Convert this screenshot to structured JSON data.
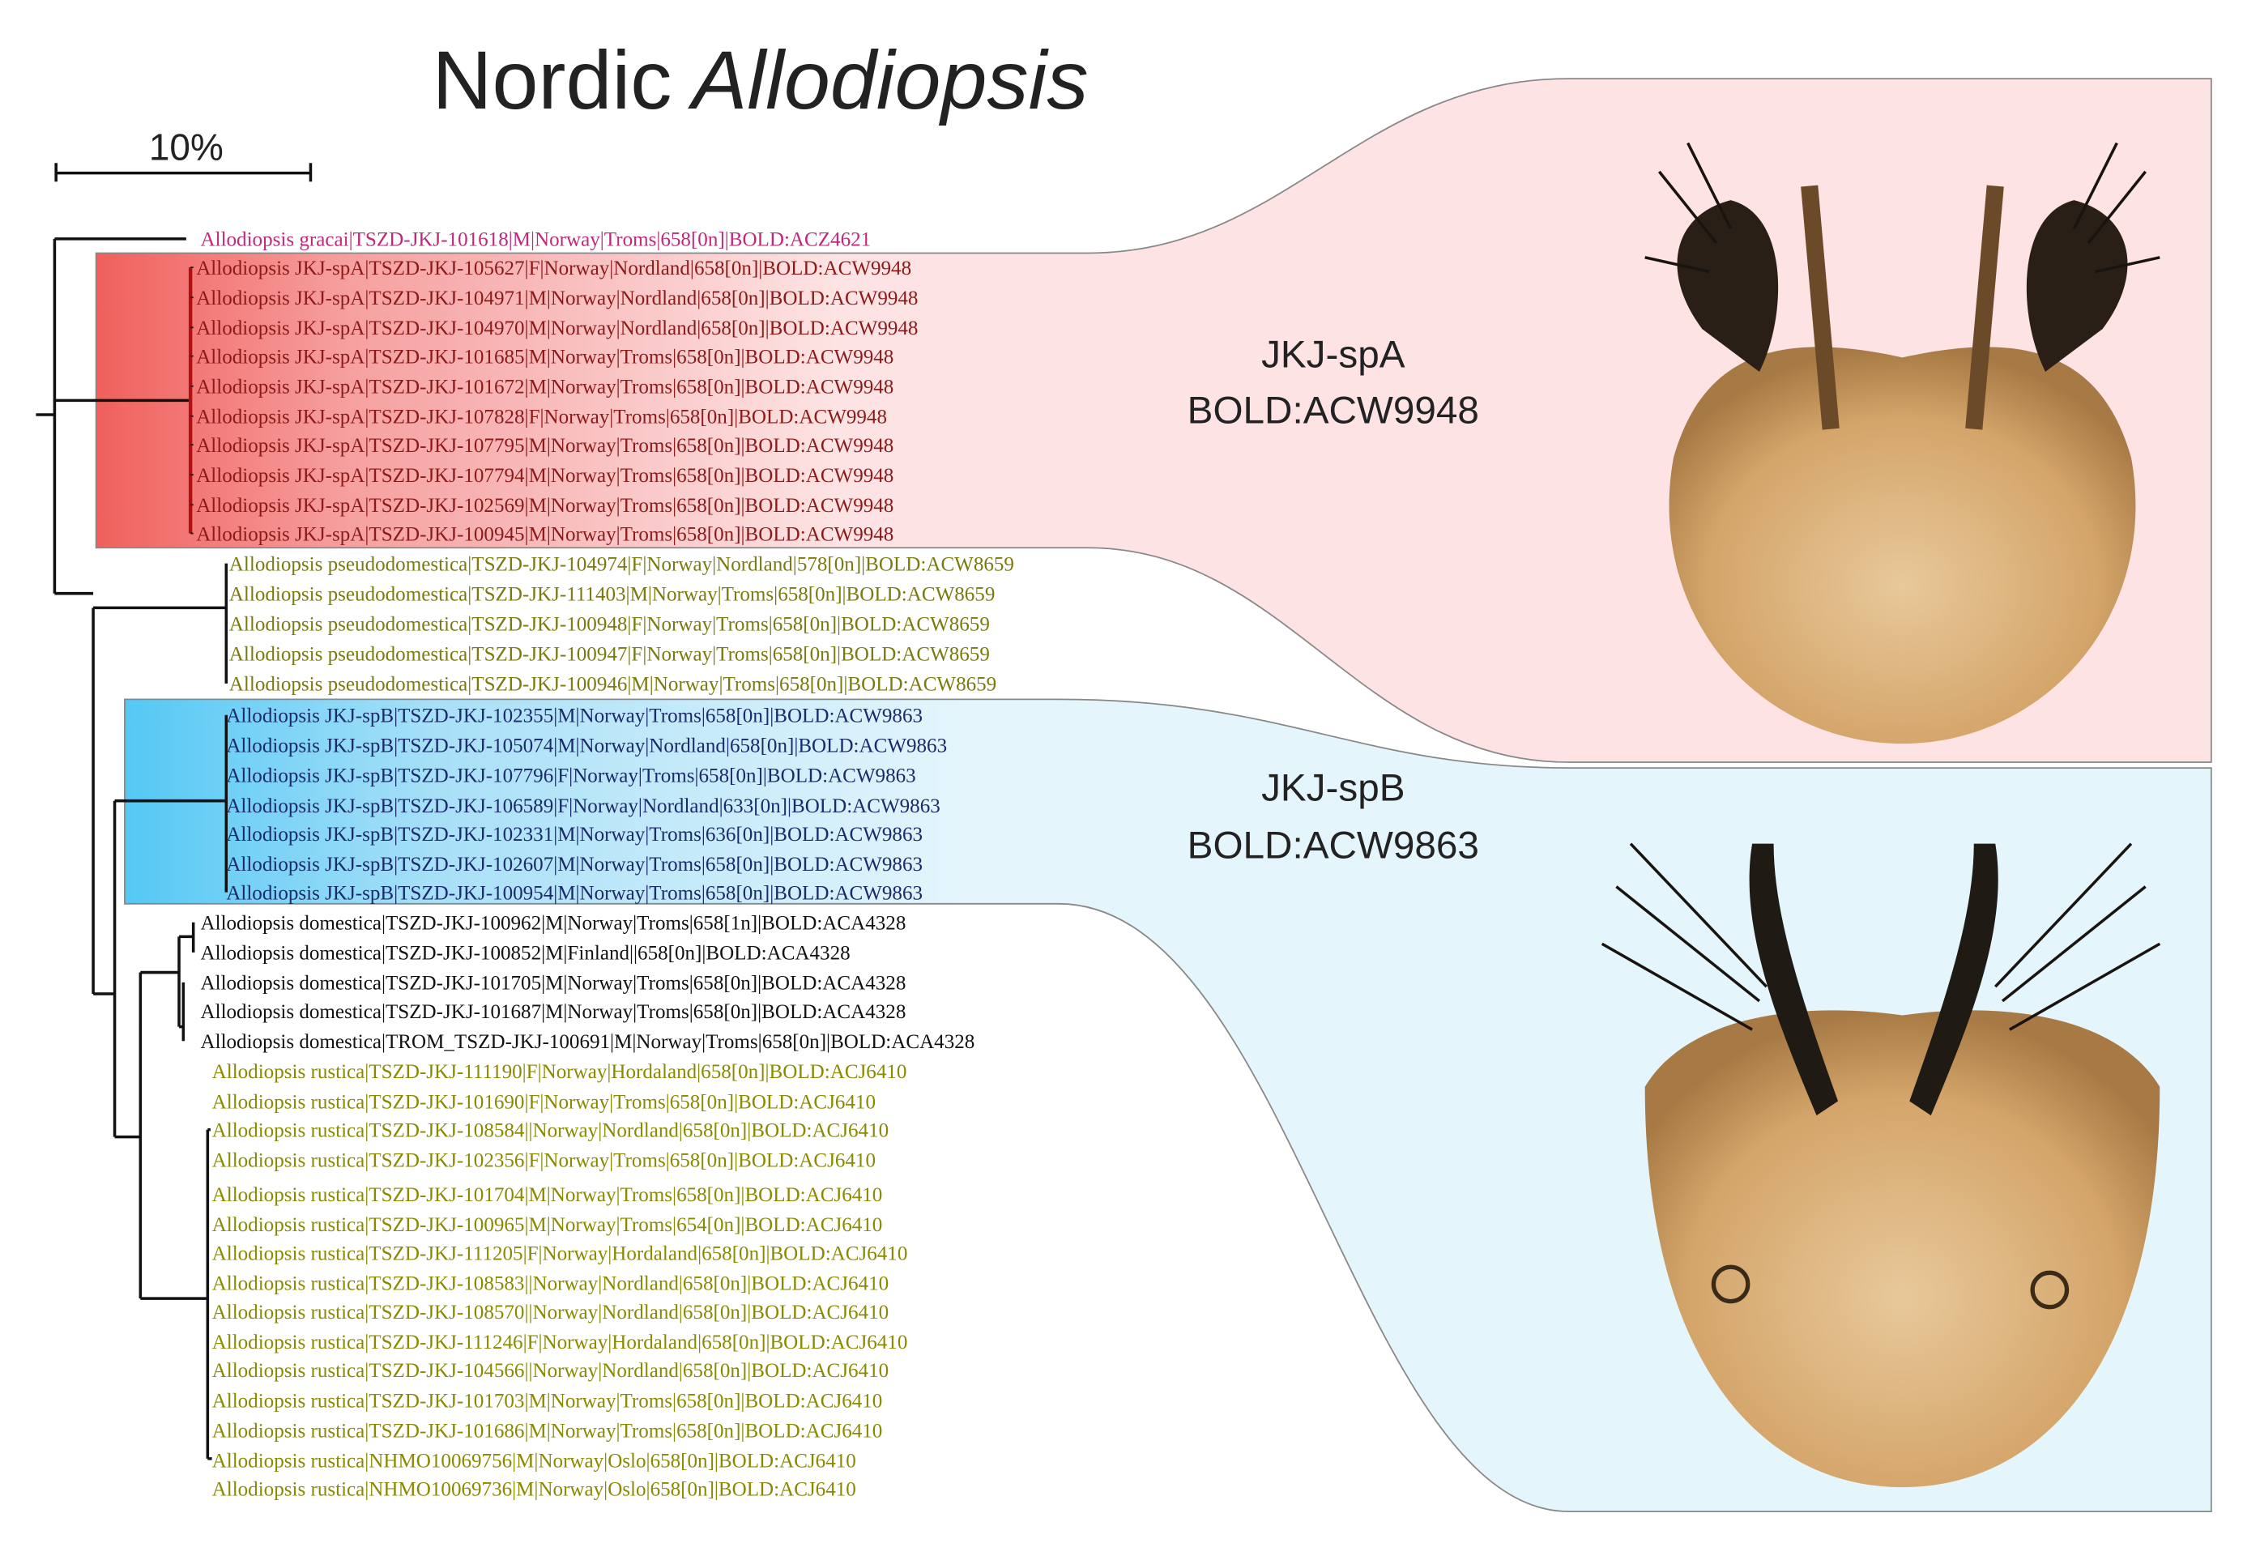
{
  "title": {
    "plain": "Nordic",
    "italic": "Allodiopsis"
  },
  "scale_label": "10%",
  "clades": [
    {
      "name": "JKJ-spA",
      "bin": "BOLD:ACW9948"
    },
    {
      "name": "JKJ-spB",
      "bin": "BOLD:ACW9863"
    }
  ],
  "leaf_groups": [
    [
      "Allodiopsis gracai|TSZD-JKJ-101618|M|Norway|Troms|658[0n]|BOLD:ACZ4621"
    ],
    [
      "Allodiopsis JKJ-spA|TSZD-JKJ-105627|F|Norway|Nordland|658[0n]|BOLD:ACW9948",
      "Allodiopsis JKJ-spA|TSZD-JKJ-104971|M|Norway|Nordland|658[0n]|BOLD:ACW9948",
      "Allodiopsis JKJ-spA|TSZD-JKJ-104970|M|Norway|Nordland|658[0n]|BOLD:ACW9948",
      "Allodiopsis JKJ-spA|TSZD-JKJ-101685|M|Norway|Troms|658[0n]|BOLD:ACW9948",
      "Allodiopsis JKJ-spA|TSZD-JKJ-101672|M|Norway|Troms|658[0n]|BOLD:ACW9948",
      "Allodiopsis JKJ-spA|TSZD-JKJ-107828|F|Norway|Troms|658[0n]|BOLD:ACW9948",
      "Allodiopsis JKJ-spA|TSZD-JKJ-107795|M|Norway|Troms|658[0n]|BOLD:ACW9948",
      "Allodiopsis JKJ-spA|TSZD-JKJ-107794|M|Norway|Troms|658[0n]|BOLD:ACW9948",
      "Allodiopsis JKJ-spA|TSZD-JKJ-102569|M|Norway|Troms|658[0n]|BOLD:ACW9948",
      "Allodiopsis JKJ-spA|TSZD-JKJ-100945|M|Norway|Troms|658[0n]|BOLD:ACW9948"
    ],
    [
      "Allodiopsis pseudodomestica|TSZD-JKJ-104974|F|Norway|Nordland|578[0n]|BOLD:ACW8659",
      "Allodiopsis pseudodomestica|TSZD-JKJ-111403|M|Norway|Troms|658[0n]|BOLD:ACW8659",
      "Allodiopsis pseudodomestica|TSZD-JKJ-100948|F|Norway|Troms|658[0n]|BOLD:ACW8659",
      "Allodiopsis pseudodomestica|TSZD-JKJ-100947|F|Norway|Troms|658[0n]|BOLD:ACW8659",
      "Allodiopsis pseudodomestica|TSZD-JKJ-100946|M|Norway|Troms|658[0n]|BOLD:ACW8659"
    ],
    [
      "Allodiopsis JKJ-spB|TSZD-JKJ-102355|M|Norway|Troms|658[0n]|BOLD:ACW9863",
      "Allodiopsis JKJ-spB|TSZD-JKJ-105074|M|Norway|Nordland|658[0n]|BOLD:ACW9863",
      "Allodiopsis JKJ-spB|TSZD-JKJ-107796|F|Norway|Troms|658[0n]|BOLD:ACW9863",
      "Allodiopsis JKJ-spB|TSZD-JKJ-106589|F|Norway|Nordland|633[0n]|BOLD:ACW9863",
      "Allodiopsis JKJ-spB|TSZD-JKJ-102331|M|Norway|Troms|636[0n]|BOLD:ACW9863",
      "Allodiopsis JKJ-spB|TSZD-JKJ-102607|M|Norway|Troms|658[0n]|BOLD:ACW9863",
      "Allodiopsis JKJ-spB|TSZD-JKJ-100954|M|Norway|Troms|658[0n]|BOLD:ACW9863"
    ],
    [
      "Allodiopsis domestica|TSZD-JKJ-100962|M|Norway|Troms|658[1n]|BOLD:ACA4328",
      "Allodiopsis domestica|TSZD-JKJ-100852|M|Finland||658[0n]|BOLD:ACA4328",
      "Allodiopsis domestica|TSZD-JKJ-101705|M|Norway|Troms|658[0n]|BOLD:ACA4328",
      "Allodiopsis domestica|TSZD-JKJ-101687|M|Norway|Troms|658[0n]|BOLD:ACA4328",
      "Allodiopsis domestica|TROM_TSZD-JKJ-100691|M|Norway|Troms|658[0n]|BOLD:ACA4328"
    ],
    [
      "Allodiopsis rustica|TSZD-JKJ-111190|F|Norway|Hordaland|658[0n]|BOLD:ACJ6410",
      "Allodiopsis rustica|TSZD-JKJ-101690|F|Norway|Troms|658[0n]|BOLD:ACJ6410",
      "Allodiopsis rustica|TSZD-JKJ-108584||Norway|Nordland|658[0n]|BOLD:ACJ6410",
      "Allodiopsis rustica|TSZD-JKJ-102356|F|Norway|Troms|658[0n]|BOLD:ACJ6410",
      "Allodiopsis rustica|TSZD-JKJ-101704|M|Norway|Troms|658[0n]|BOLD:ACJ6410",
      "Allodiopsis rustica|TSZD-JKJ-100965|M|Norway|Troms|654[0n]|BOLD:ACJ6410",
      "Allodiopsis rustica|TSZD-JKJ-111205|F|Norway|Hordaland|658[0n]|BOLD:ACJ6410",
      "Allodiopsis rustica|TSZD-JKJ-108583||Norway|Nordland|658[0n]|BOLD:ACJ6410",
      "Allodiopsis rustica|TSZD-JKJ-108570||Norway|Nordland|658[0n]|BOLD:ACJ6410",
      "Allodiopsis rustica|TSZD-JKJ-111246|F|Norway|Hordaland|658[0n]|BOLD:ACJ6410",
      "Allodiopsis rustica|TSZD-JKJ-104566||Norway|Nordland|658[0n]|BOLD:ACJ6410",
      "Allodiopsis rustica|TSZD-JKJ-101703|M|Norway|Troms|658[0n]|BOLD:ACJ6410",
      "Allodiopsis rustica|TSZD-JKJ-101686|M|Norway|Troms|658[0n]|BOLD:ACJ6410",
      "Allodiopsis rustica|NHMO10069756|M|Norway|Oslo|658[0n]|BOLD:ACJ6410",
      "Allodiopsis rustica|NHMO10069736|M|Norway|Oslo|658[0n]|BOLD:ACJ6410"
    ]
  ]
}
